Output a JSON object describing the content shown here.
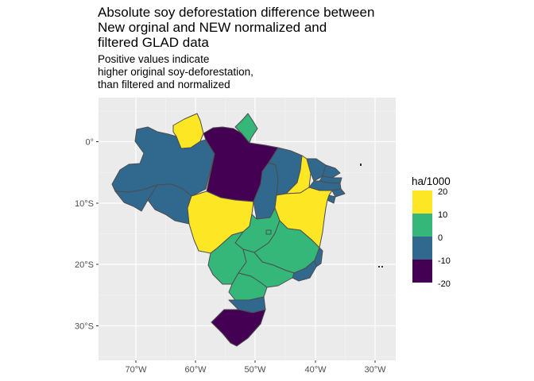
{
  "title": "Absolute soy deforestation difference between\nNew orginal and NEW normalized and\nfiltered GLAD data",
  "subtitle": "Positive values indicate\nhigher original soy-deforestation,\nthan filtered and normalized",
  "axes": {
    "x_ticks": [
      "70°W",
      "60°W",
      "50°W",
      "40°W",
      "30°W"
    ],
    "y_ticks": [
      "0°",
      "10°S",
      "20°S",
      "30°S"
    ]
  },
  "legend": {
    "title": "ha/1000",
    "labels": [
      "20",
      "10",
      "0",
      "-10",
      "-20"
    ],
    "colors": [
      "#FDE725",
      "#35B779",
      "#31688E",
      "#440154"
    ]
  },
  "regions": [
    {
      "name": "Roraima",
      "value": 20,
      "color": "#FDE725"
    },
    {
      "name": "Amapá",
      "value": 5,
      "color": "#35B779"
    },
    {
      "name": "Amazonas",
      "value": -5,
      "color": "#31688E"
    },
    {
      "name": "Pará",
      "value": -20,
      "color": "#440154"
    },
    {
      "name": "Acre",
      "value": -5,
      "color": "#31688E"
    },
    {
      "name": "Rondônia",
      "value": -5,
      "color": "#31688E"
    },
    {
      "name": "Mato Grosso",
      "value": 20,
      "color": "#FDE725"
    },
    {
      "name": "Tocantins",
      "value": -5,
      "color": "#31688E"
    },
    {
      "name": "Maranhão",
      "value": -5,
      "color": "#31688E"
    },
    {
      "name": "Piauí",
      "value": 20,
      "color": "#FDE725"
    },
    {
      "name": "Bahia",
      "value": 20,
      "color": "#FDE725"
    },
    {
      "name": "Ceará",
      "value": -5,
      "color": "#31688E"
    },
    {
      "name": "Rio Grande do Norte",
      "value": -5,
      "color": "#31688E"
    },
    {
      "name": "Paraíba",
      "value": -5,
      "color": "#31688E"
    },
    {
      "name": "Pernambuco",
      "value": -5,
      "color": "#31688E"
    },
    {
      "name": "Alagoas",
      "value": -5,
      "color": "#31688E"
    },
    {
      "name": "Sergipe",
      "value": -5,
      "color": "#31688E"
    },
    {
      "name": "Goiás",
      "value": 5,
      "color": "#35B779"
    },
    {
      "name": "Distrito Federal",
      "value": 5,
      "color": "#35B779"
    },
    {
      "name": "Minas Gerais",
      "value": 5,
      "color": "#35B779"
    },
    {
      "name": "Mato Grosso do Sul",
      "value": 5,
      "color": "#35B779"
    },
    {
      "name": "São Paulo",
      "value": 5,
      "color": "#35B779"
    },
    {
      "name": "Espírito Santo",
      "value": -5,
      "color": "#31688E"
    },
    {
      "name": "Rio de Janeiro",
      "value": -5,
      "color": "#31688E"
    },
    {
      "name": "Paraná",
      "value": 5,
      "color": "#35B779"
    },
    {
      "name": "Santa Catarina",
      "value": -5,
      "color": "#31688E"
    },
    {
      "name": "Rio Grande do Sul",
      "value": -20,
      "color": "#440154"
    }
  ]
}
